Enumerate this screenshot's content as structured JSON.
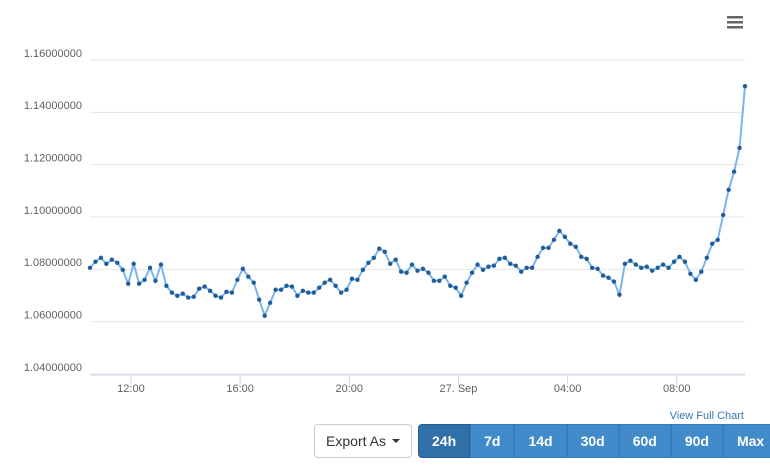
{
  "chart_data": {
    "type": "line",
    "x": [
      10.5,
      10.7,
      10.9,
      11.1,
      11.3,
      11.5,
      11.7,
      11.9,
      12.1,
      12.3,
      12.5,
      12.7,
      12.9,
      13.1,
      13.3,
      13.5,
      13.7,
      13.9,
      14.1,
      14.3,
      14.5,
      14.7,
      14.9,
      15.1,
      15.3,
      15.5,
      15.7,
      15.9,
      16.1,
      16.3,
      16.5,
      16.7,
      16.9,
      17.1,
      17.3,
      17.5,
      17.7,
      17.9,
      18.1,
      18.3,
      18.5,
      18.7,
      18.9,
      19.1,
      19.3,
      19.5,
      19.7,
      19.9,
      20.1,
      20.3,
      20.5,
      20.7,
      20.9,
      21.1,
      21.3,
      21.5,
      21.7,
      21.9,
      22.1,
      22.3,
      22.5,
      22.7,
      22.9,
      23.1,
      23.3,
      23.5,
      23.7,
      23.9,
      24.1,
      24.3,
      24.5,
      24.7,
      24.9,
      25.1,
      25.3,
      25.5,
      25.7,
      25.9,
      26.1,
      26.3,
      26.5,
      26.7,
      26.9,
      27.1,
      27.3,
      27.5,
      27.7,
      27.9,
      28.1,
      28.3,
      28.5,
      28.7,
      28.9,
      29.1,
      29.3,
      29.5,
      29.7,
      29.9,
      30.1,
      30.3,
      30.5,
      30.7,
      30.9,
      31.1,
      31.3,
      31.5,
      31.7,
      31.9,
      32.1,
      32.3,
      32.5,
      32.7,
      32.9,
      33.1,
      33.3,
      33.5,
      33.7,
      33.9,
      34.1,
      34.3,
      34.5
    ],
    "series": [
      {
        "color": "#7cb5ec",
        "marker_color": "#1f5d99",
        "values": [
          1.0806,
          1.0829,
          1.0844,
          1.0821,
          1.0837,
          1.0825,
          1.0798,
          1.0745,
          1.0821,
          1.0745,
          1.076,
          1.0806,
          1.0756,
          1.0818,
          1.0737,
          1.0711,
          1.0699,
          1.0707,
          1.0692,
          1.0695,
          1.0726,
          1.0734,
          1.0718,
          1.0699,
          1.0692,
          1.0714,
          1.0711,
          1.076,
          1.0802,
          1.0772,
          1.0749,
          1.0684,
          1.0623,
          1.0672,
          1.0722,
          1.0722,
          1.0737,
          1.0734,
          1.0699,
          1.0718,
          1.0711,
          1.0711,
          1.073,
          1.0749,
          1.076,
          1.0737,
          1.0711,
          1.0722,
          1.0764,
          1.076,
          1.0798,
          1.0825,
          1.0844,
          1.0879,
          1.0867,
          1.0821,
          1.0837,
          1.0791,
          1.0787,
          1.0818,
          1.0795,
          1.0802,
          1.0787,
          1.0756,
          1.0756,
          1.0772,
          1.0737,
          1.073,
          1.0699,
          1.0749,
          1.0787,
          1.0818,
          1.0798,
          1.081,
          1.0814,
          1.084,
          1.0844,
          1.0821,
          1.0814,
          1.0791,
          1.0806,
          1.0806,
          1.0848,
          1.0882,
          1.0882,
          1.0913,
          1.0947,
          1.0924,
          1.0898,
          1.0886,
          1.0848,
          1.084,
          1.0806,
          1.0802,
          1.0776,
          1.0768,
          1.0753,
          1.0703,
          1.0821,
          1.0833,
          1.0818,
          1.0806,
          1.081,
          1.0795,
          1.0806,
          1.0818,
          1.0806,
          1.0829,
          1.0848,
          1.0829,
          1.0783,
          1.076,
          1.0791,
          1.0844,
          1.0898,
          1.0913,
          1.1008,
          1.1104,
          1.1173,
          1.1264,
          1.15
        ]
      }
    ],
    "xlim": [
      10.5,
      34.5
    ],
    "xticks": [
      {
        "value": 12,
        "label": "12:00"
      },
      {
        "value": 16,
        "label": "16:00"
      },
      {
        "value": 20,
        "label": "20:00"
      },
      {
        "value": 24,
        "label": "27. Sep"
      },
      {
        "value": 28,
        "label": "04:00"
      },
      {
        "value": 32,
        "label": "08:00"
      }
    ],
    "ylim": [
      1.04,
      1.16
    ],
    "yticks": [
      {
        "value": 1.04,
        "label": "1.04000000"
      },
      {
        "value": 1.06,
        "label": "1.06000000"
      },
      {
        "value": 1.08,
        "label": "1.08000000"
      },
      {
        "value": 1.1,
        "label": "1.10000000"
      },
      {
        "value": 1.12,
        "label": "1.12000000"
      },
      {
        "value": 1.14,
        "label": "1.14000000"
      },
      {
        "value": 1.16,
        "label": "1.16000000"
      }
    ],
    "grid": true
  },
  "controls": {
    "link": "View Full Chart",
    "export": "Export As",
    "ranges": [
      "24h",
      "7d",
      "14d",
      "30d",
      "60d",
      "90d",
      "Max"
    ],
    "selected": 0
  }
}
